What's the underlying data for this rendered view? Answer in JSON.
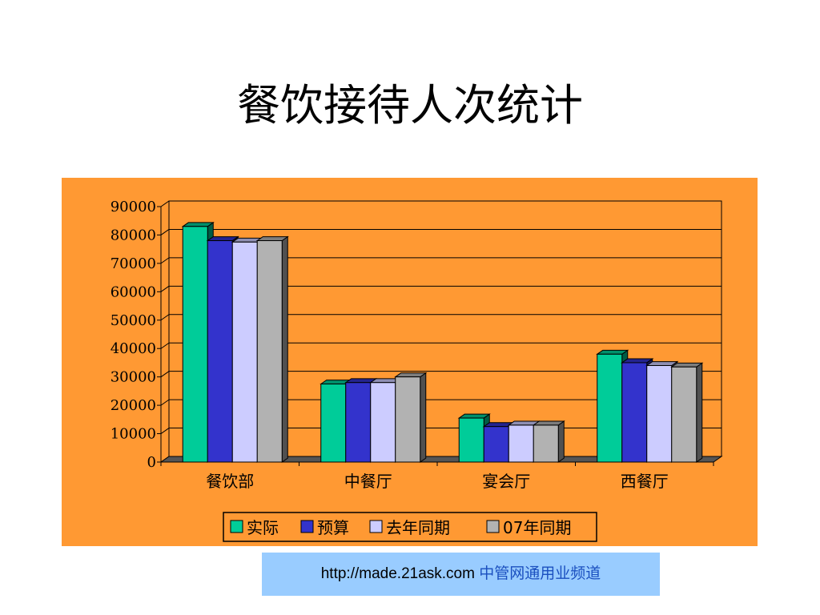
{
  "slide": {
    "title": "餐饮接待人次统计"
  },
  "colors": {
    "chart_background": "#FF9933",
    "series": [
      "#00CC99",
      "#3333CC",
      "#CCCCFF",
      "#B2B2B2"
    ],
    "footer_background": "#99CCFF"
  },
  "chart_data": {
    "type": "bar",
    "style": "3d-clustered-column",
    "title": "",
    "xlabel": "",
    "ylabel": "",
    "categories": [
      "餐饮部",
      "中餐厅",
      "宴会厅",
      "西餐厅"
    ],
    "series": [
      {
        "name": "实际",
        "values": [
          83000,
          27500,
          15500,
          38000
        ]
      },
      {
        "name": "预算",
        "values": [
          78000,
          28000,
          12500,
          35000
        ]
      },
      {
        "name": "去年同期",
        "values": [
          77500,
          28000,
          13000,
          34000
        ]
      },
      {
        "name": "07年同期",
        "values": [
          78000,
          30000,
          13000,
          33500
        ]
      }
    ],
    "ylim": [
      0,
      90000
    ],
    "yticks": [
      "0",
      "10000",
      "20000",
      "30000",
      "40000",
      "50000",
      "60000",
      "70000",
      "80000",
      "90000"
    ],
    "grid": true,
    "legend_position": "bottom"
  },
  "footer": {
    "url": "http://made.21ask.com",
    "site_name": "中管网通用业频道"
  }
}
